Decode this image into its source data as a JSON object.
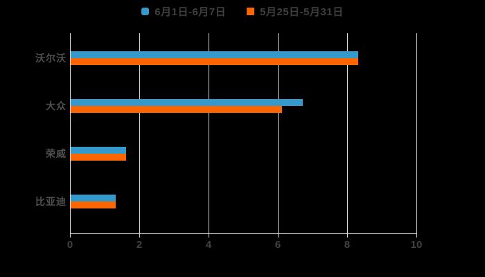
{
  "chart_data": {
    "type": "bar",
    "orientation": "horizontal",
    "title": "",
    "categories": [
      "沃尔沃",
      "大众",
      "荣威",
      "比亚迪"
    ],
    "series": [
      {
        "name": "6月1日-6月7日",
        "color": "#3499cb",
        "marker_shape": "rounded-square",
        "values": [
          8.3,
          6.7,
          1.6,
          1.3
        ]
      },
      {
        "name": "5月25日-5月31日",
        "color": "#fd6500",
        "marker_shape": "square",
        "values": [
          8.3,
          6.1,
          1.6,
          1.3
        ]
      }
    ],
    "x_ticks": [
      "0",
      "2",
      "4",
      "6",
      "8",
      "10"
    ],
    "xlim": [
      0,
      10
    ],
    "xlabel": "",
    "ylabel": "",
    "grid": true,
    "gridline_color": "#d9d9d9",
    "axis_label_color": "#434343",
    "category_label_color": "#4f4f4f",
    "legend_text_color": "#3f3f3f",
    "legend_position": "top",
    "background": "#000000"
  }
}
